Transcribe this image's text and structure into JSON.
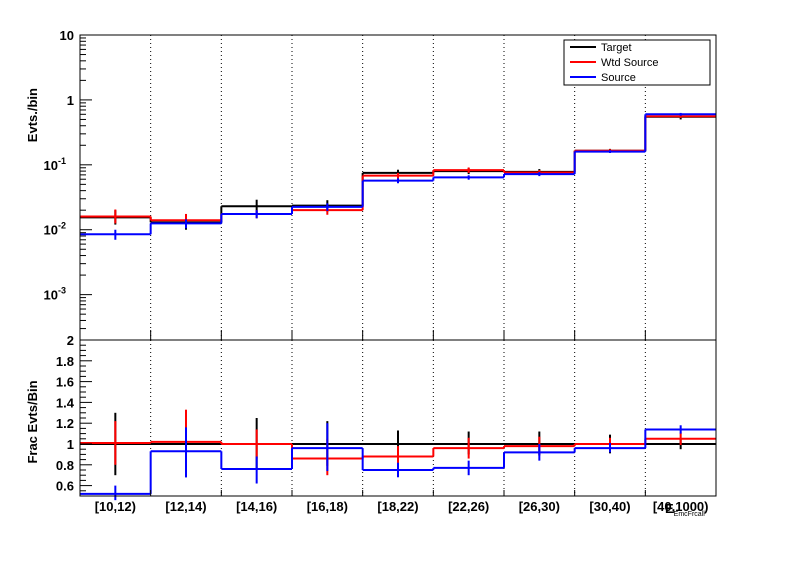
{
  "chart_data": [
    {
      "type": "step",
      "yscale": "log",
      "ylabel": "Evts./bin",
      "ylim": [
        0.0002,
        10
      ],
      "yticks": [
        {
          "value": 0.001,
          "base": "10",
          "exp": "-3"
        },
        {
          "value": 0.01,
          "base": "10",
          "exp": "-2"
        },
        {
          "value": 0.1,
          "base": "10",
          "exp": "-1"
        },
        {
          "value": 1,
          "base": "1",
          "exp": ""
        },
        {
          "value": 10,
          "base": "10",
          "exp": ""
        }
      ],
      "categories": [
        "[10,12)",
        "[12,14)",
        "[14,16)",
        "[16,18)",
        "[18,22)",
        "[22,26)",
        "[26,30)",
        "[30,40)",
        "[40,1000)"
      ],
      "legend": {
        "position": "top-right",
        "entries": [
          "Target",
          "Wtd Source",
          "Source"
        ]
      },
      "series": [
        {
          "name": "Target",
          "color": "#000000",
          "values": [
            0.0155,
            0.013,
            0.023,
            0.0235,
            0.075,
            0.08,
            0.078,
            0.165,
            0.55
          ],
          "err_low": [
            0.012,
            0.01,
            0.0175,
            0.019,
            0.066,
            0.072,
            0.07,
            0.155,
            0.5
          ],
          "err_high": [
            0.02,
            0.0165,
            0.029,
            0.0285,
            0.084,
            0.089,
            0.086,
            0.176,
            0.6
          ]
        },
        {
          "name": "Wtd Source",
          "color": "#ff0000",
          "values": [
            0.016,
            0.014,
            0.0175,
            0.02,
            0.068,
            0.083,
            0.076,
            0.165,
            0.56
          ],
          "err_low": [
            0.0125,
            0.011,
            0.015,
            0.017,
            0.061,
            0.075,
            0.069,
            0.157,
            0.53
          ],
          "err_high": [
            0.0205,
            0.0175,
            0.02,
            0.0235,
            0.075,
            0.091,
            0.083,
            0.174,
            0.59
          ]
        },
        {
          "name": "Source",
          "color": "#0000ff",
          "values": [
            0.0085,
            0.0125,
            0.0175,
            0.0225,
            0.057,
            0.064,
            0.072,
            0.16,
            0.6
          ],
          "err_low": [
            0.007,
            0.0105,
            0.015,
            0.0195,
            0.052,
            0.059,
            0.067,
            0.152,
            0.57
          ],
          "err_high": [
            0.01,
            0.0145,
            0.02,
            0.0255,
            0.062,
            0.069,
            0.077,
            0.168,
            0.63
          ]
        }
      ]
    },
    {
      "type": "step",
      "ylabel": "Frac Evts/Bin",
      "ylim": [
        0.5,
        2
      ],
      "yticks": [
        0.6,
        0.8,
        1,
        1.2,
        1.4,
        1.6,
        1.8,
        2
      ],
      "ytick_labels": [
        "0.6",
        "0.8",
        "1",
        "1.2",
        "1.4",
        "1.6",
        "1.8",
        "2"
      ],
      "xlabel": "E",
      "xlabel_sub": "EmcFrcall",
      "categories": [
        "[10,12)",
        "[12,14)",
        "[14,16)",
        "[16,18)",
        "[18,22)",
        "[22,26)",
        "[26,30)",
        "[30,40)",
        "[40,1000)"
      ],
      "series": [
        {
          "name": "Target",
          "color": "#000000",
          "values": [
            1,
            1,
            1,
            1,
            1,
            1,
            1,
            1,
            1
          ],
          "err_low": [
            0.7,
            0.68,
            0.76,
            0.79,
            0.89,
            0.9,
            0.89,
            0.91,
            0.95
          ],
          "err_high": [
            1.3,
            1.32,
            1.25,
            1.22,
            1.13,
            1.12,
            1.12,
            1.09,
            1.05
          ]
        },
        {
          "name": "Wtd Source",
          "color": "#ff0000",
          "values": [
            1.01,
            1.02,
            1.0,
            0.86,
            0.88,
            0.96,
            0.98,
            1.0,
            1.05
          ],
          "err_low": [
            0.8,
            0.78,
            0.86,
            0.7,
            0.78,
            0.86,
            0.89,
            0.94,
            0.99
          ],
          "err_high": [
            1.22,
            1.33,
            1.14,
            1.05,
            0.98,
            1.06,
            1.07,
            1.06,
            1.11
          ]
        },
        {
          "name": "Source",
          "color": "#0000ff",
          "values": [
            0.52,
            0.93,
            0.76,
            0.96,
            0.75,
            0.77,
            0.92,
            0.96,
            1.14
          ],
          "err_low": [
            0.46,
            0.68,
            0.62,
            0.74,
            0.68,
            0.7,
            0.84,
            0.92,
            1.1
          ],
          "err_high": [
            0.6,
            1.16,
            0.88,
            1.2,
            0.82,
            0.84,
            1.0,
            1.01,
            1.18
          ]
        }
      ]
    }
  ]
}
